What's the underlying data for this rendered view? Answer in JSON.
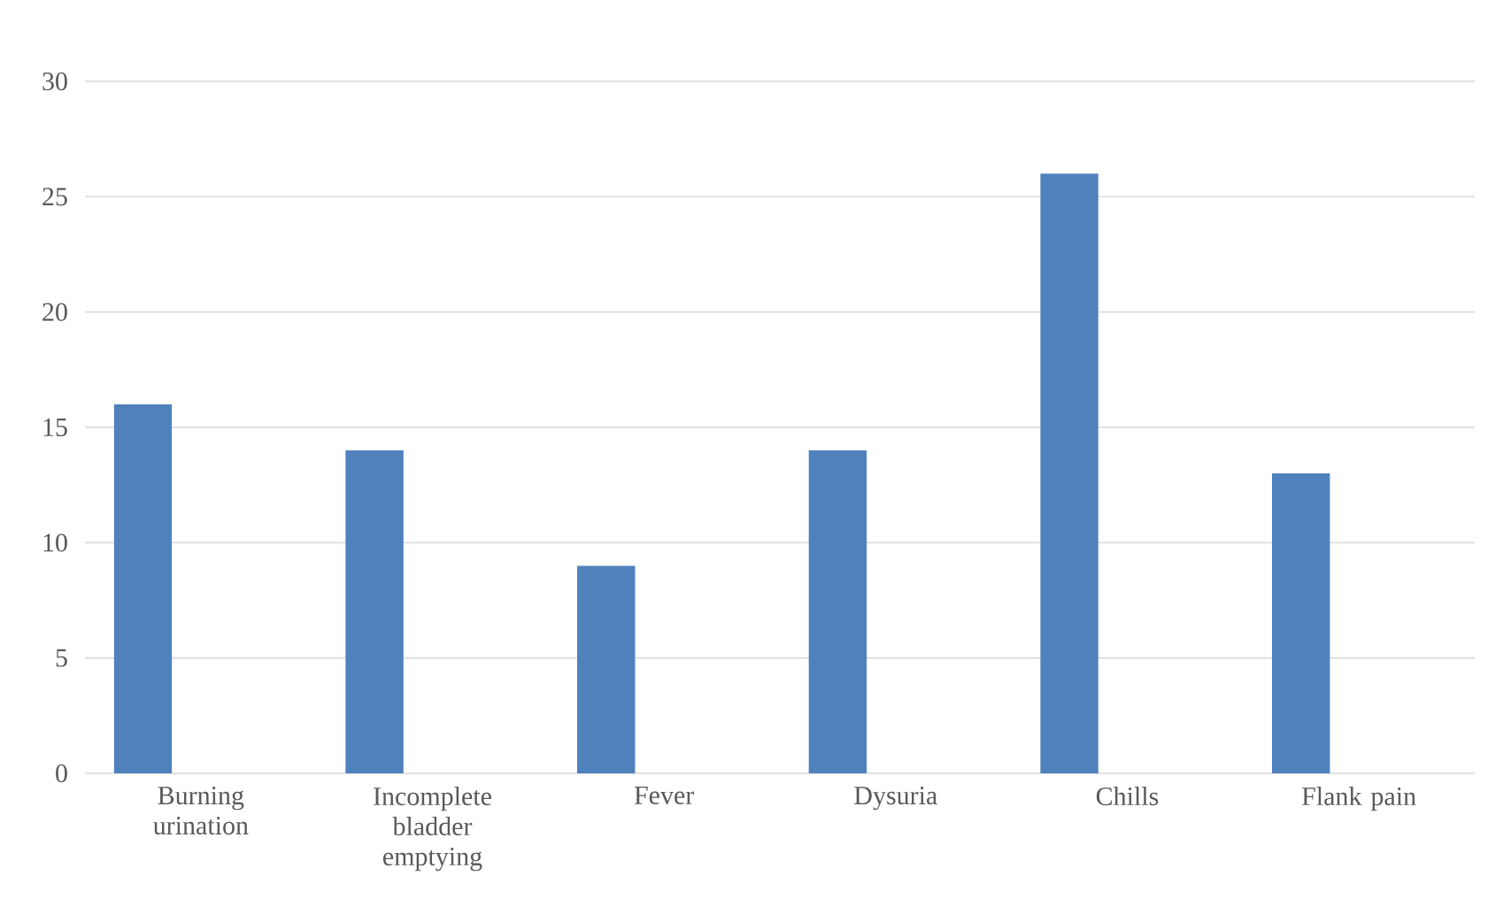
{
  "chart_data": {
    "type": "bar",
    "categories": [
      "Burning urination",
      "Incomplete bladder emptying",
      "Fever",
      "Dysuria",
      "Chills",
      "Flank pain"
    ],
    "values": [
      16,
      14,
      9,
      14,
      26,
      13
    ],
    "color": "#4f81bd",
    "ylim": [
      0,
      30
    ],
    "yticks": [
      0,
      5,
      10,
      15,
      20,
      25,
      30
    ],
    "grid": "y"
  }
}
